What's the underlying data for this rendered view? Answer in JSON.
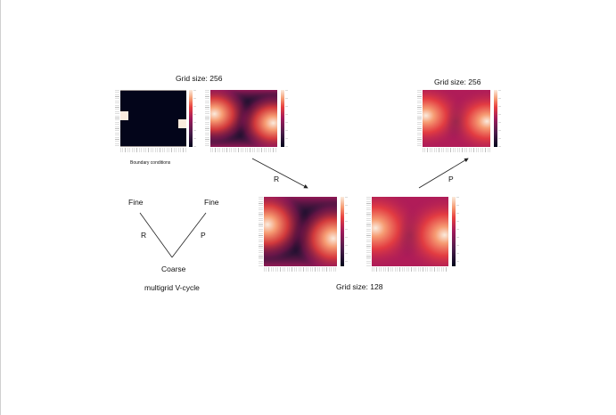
{
  "titles": {
    "top_left": "Grid size: 256",
    "top_right": "Grid size: 256",
    "bottom": "Grid size: 128"
  },
  "captions": {
    "boundary": "Boundary conditions",
    "vcycle": "multigrid V-cycle"
  },
  "arrows": {
    "restrict": "R",
    "prolong": "P"
  },
  "vcycle": {
    "fine_left": "Fine",
    "fine_right": "Fine",
    "coarse": "Coarse",
    "restrict": "R",
    "prolong": "P"
  },
  "colors": {
    "colormap": [
      "#03051a",
      "#4c1d4b",
      "#a11a5b",
      "#e83f3f",
      "#f69c73",
      "#faebdd"
    ],
    "background": "#ffffff"
  }
}
